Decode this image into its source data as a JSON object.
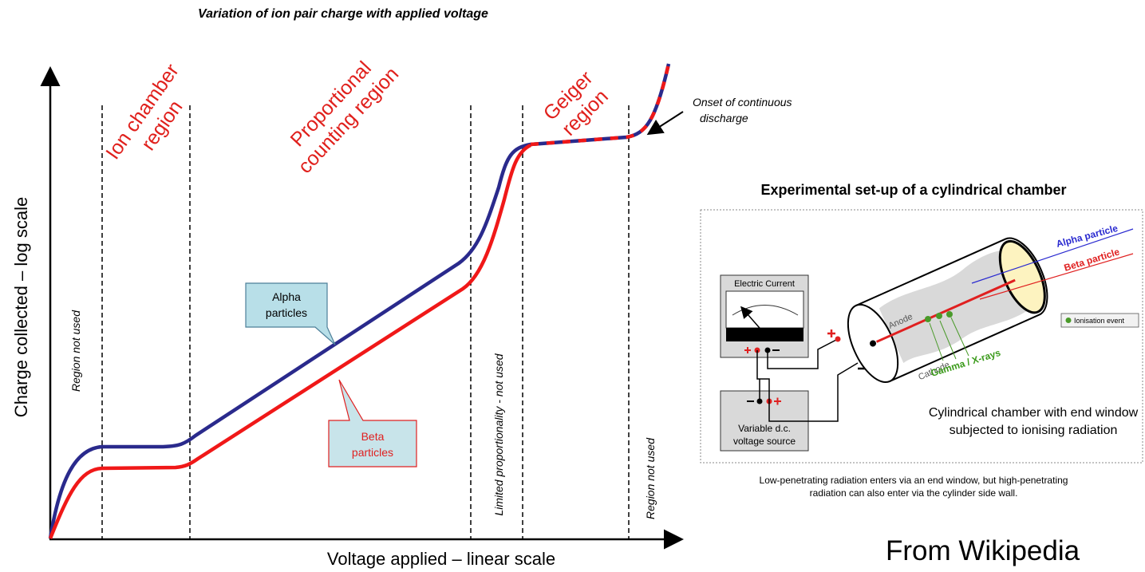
{
  "title": "Variation of ion pair charge with applied voltage",
  "y_axis_label": "Charge collected – log scale",
  "x_axis_label": "Voltage applied – linear scale",
  "regions": {
    "ion_chamber": [
      "Ion chamber",
      "region"
    ],
    "proportional": [
      "Proportional",
      "counting region"
    ],
    "geiger": [
      "Geiger",
      "region"
    ]
  },
  "region_notes": [
    "Region not used",
    "Limited proportionality - not used",
    "Region not used"
  ],
  "callouts": {
    "alpha": [
      "Alpha",
      "particles"
    ],
    "beta": [
      "Beta",
      "particles"
    ]
  },
  "onset": [
    "Onset of continuous",
    "discharge"
  ],
  "setup": {
    "title": "Experimental set-up of a cylindrical chamber",
    "meter": "Electric Current",
    "source": [
      "Variable d.c.",
      "voltage source"
    ],
    "alpha": "Alpha particle",
    "beta": "Beta particle",
    "anode": "Anode",
    "cathode": "Cathode",
    "rays": "Gamma / X-rays",
    "legend": "Ionisation event",
    "description": [
      "Cylindrical chamber with end window",
      "subjected to ionising radiation"
    ],
    "caption": [
      "Low-penetrating radiation enters via an end window, but high-penetrating",
      "radiation can also enter via the cylinder side wall."
    ]
  },
  "credit": "From Wikipedia"
}
